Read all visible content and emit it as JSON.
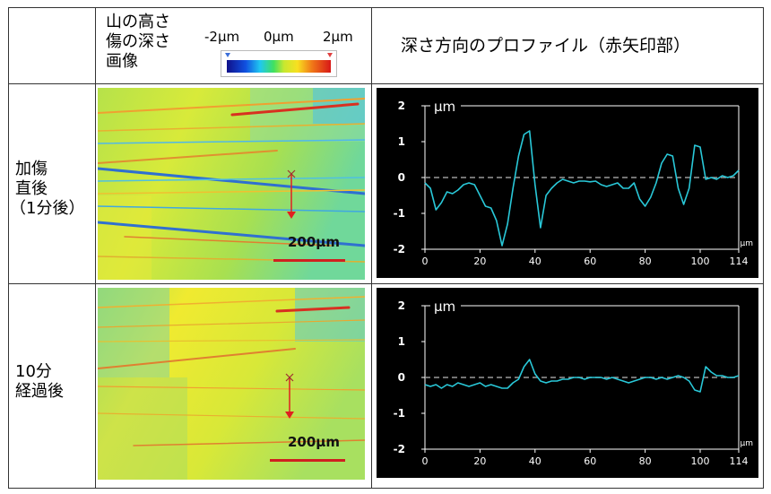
{
  "header": {
    "image_title": [
      "山の高さ",
      "傷の深さ",
      "画像"
    ],
    "legend_min": "-2μm",
    "legend_mid": "0μm",
    "legend_max": "2μm",
    "profile_title": "深さ方向のプロファイル（赤矢印部）"
  },
  "rows": [
    {
      "label": [
        "加傷",
        "直後",
        "（1分後）"
      ],
      "scale_bar": "200μm"
    },
    {
      "label": [
        "10分",
        "経過後"
      ],
      "scale_bar": "200μm"
    }
  ],
  "colors": {
    "line": "#29c8d8",
    "zero": "#9a9a9a",
    "axis": "#ffffff",
    "arrow": "#e02020"
  },
  "chart_data": [
    {
      "type": "line",
      "title": "加傷直後（1分後）",
      "ylabel": "μm",
      "xlabel": "μm",
      "xlim": [
        0,
        114
      ],
      "ylim": [
        -2,
        2
      ],
      "xticks": [
        0,
        20,
        40,
        60,
        80,
        100,
        114
      ],
      "yticks": [
        2,
        1,
        0,
        -1,
        -2
      ],
      "series": [
        {
          "name": "profile",
          "x": [
            0,
            2,
            4,
            6,
            8,
            10,
            12,
            14,
            16,
            18,
            20,
            22,
            24,
            26,
            28,
            30,
            32,
            34,
            36,
            38,
            40,
            42,
            44,
            46,
            48,
            50,
            52,
            54,
            56,
            58,
            60,
            62,
            64,
            66,
            68,
            70,
            72,
            74,
            76,
            78,
            80,
            82,
            84,
            86,
            88,
            90,
            92,
            94,
            96,
            98,
            100,
            102,
            104,
            106,
            108,
            110,
            112,
            114
          ],
          "y": [
            -0.15,
            -0.3,
            -0.9,
            -0.7,
            -0.4,
            -0.45,
            -0.35,
            -0.2,
            -0.15,
            -0.2,
            -0.5,
            -0.8,
            -0.85,
            -1.2,
            -1.9,
            -1.3,
            -0.3,
            0.6,
            1.2,
            1.3,
            -0.2,
            -1.4,
            -0.5,
            -0.3,
            -0.15,
            -0.05,
            -0.1,
            -0.15,
            -0.1,
            -0.1,
            -0.12,
            -0.1,
            -0.2,
            -0.25,
            -0.2,
            -0.15,
            -0.3,
            -0.3,
            -0.15,
            -0.6,
            -0.8,
            -0.55,
            -0.15,
            0.4,
            0.65,
            0.6,
            -0.3,
            -0.75,
            -0.3,
            0.9,
            0.85,
            -0.05,
            0.0,
            -0.05,
            0.05,
            0.0,
            0.05,
            0.2
          ]
        }
      ]
    },
    {
      "type": "line",
      "title": "10分経過後",
      "ylabel": "μm",
      "xlabel": "μm",
      "xlim": [
        0,
        114
      ],
      "ylim": [
        -2,
        2
      ],
      "xticks": [
        0,
        20,
        40,
        60,
        80,
        100,
        114
      ],
      "yticks": [
        2,
        1,
        0,
        -1,
        -2
      ],
      "series": [
        {
          "name": "profile",
          "x": [
            0,
            2,
            4,
            6,
            8,
            10,
            12,
            14,
            16,
            18,
            20,
            22,
            24,
            26,
            28,
            30,
            32,
            34,
            36,
            38,
            40,
            42,
            44,
            46,
            48,
            50,
            52,
            54,
            56,
            58,
            60,
            62,
            64,
            66,
            68,
            70,
            72,
            74,
            76,
            78,
            80,
            82,
            84,
            86,
            88,
            90,
            92,
            94,
            96,
            98,
            100,
            102,
            104,
            106,
            108,
            110,
            112,
            114
          ],
          "y": [
            -0.2,
            -0.25,
            -0.2,
            -0.3,
            -0.2,
            -0.25,
            -0.15,
            -0.2,
            -0.25,
            -0.2,
            -0.15,
            -0.25,
            -0.2,
            -0.25,
            -0.3,
            -0.3,
            -0.15,
            -0.05,
            0.3,
            0.5,
            0.1,
            -0.1,
            -0.15,
            -0.1,
            -0.1,
            -0.05,
            -0.05,
            0.0,
            0.0,
            -0.05,
            0.0,
            0.0,
            0.0,
            -0.05,
            0.0,
            -0.05,
            -0.1,
            -0.15,
            -0.1,
            -0.05,
            0.0,
            0.0,
            -0.05,
            0.0,
            -0.05,
            0.0,
            0.05,
            0.0,
            -0.1,
            -0.35,
            -0.4,
            0.3,
            0.15,
            0.05,
            0.05,
            0.0,
            0.0,
            0.05
          ]
        }
      ]
    }
  ]
}
